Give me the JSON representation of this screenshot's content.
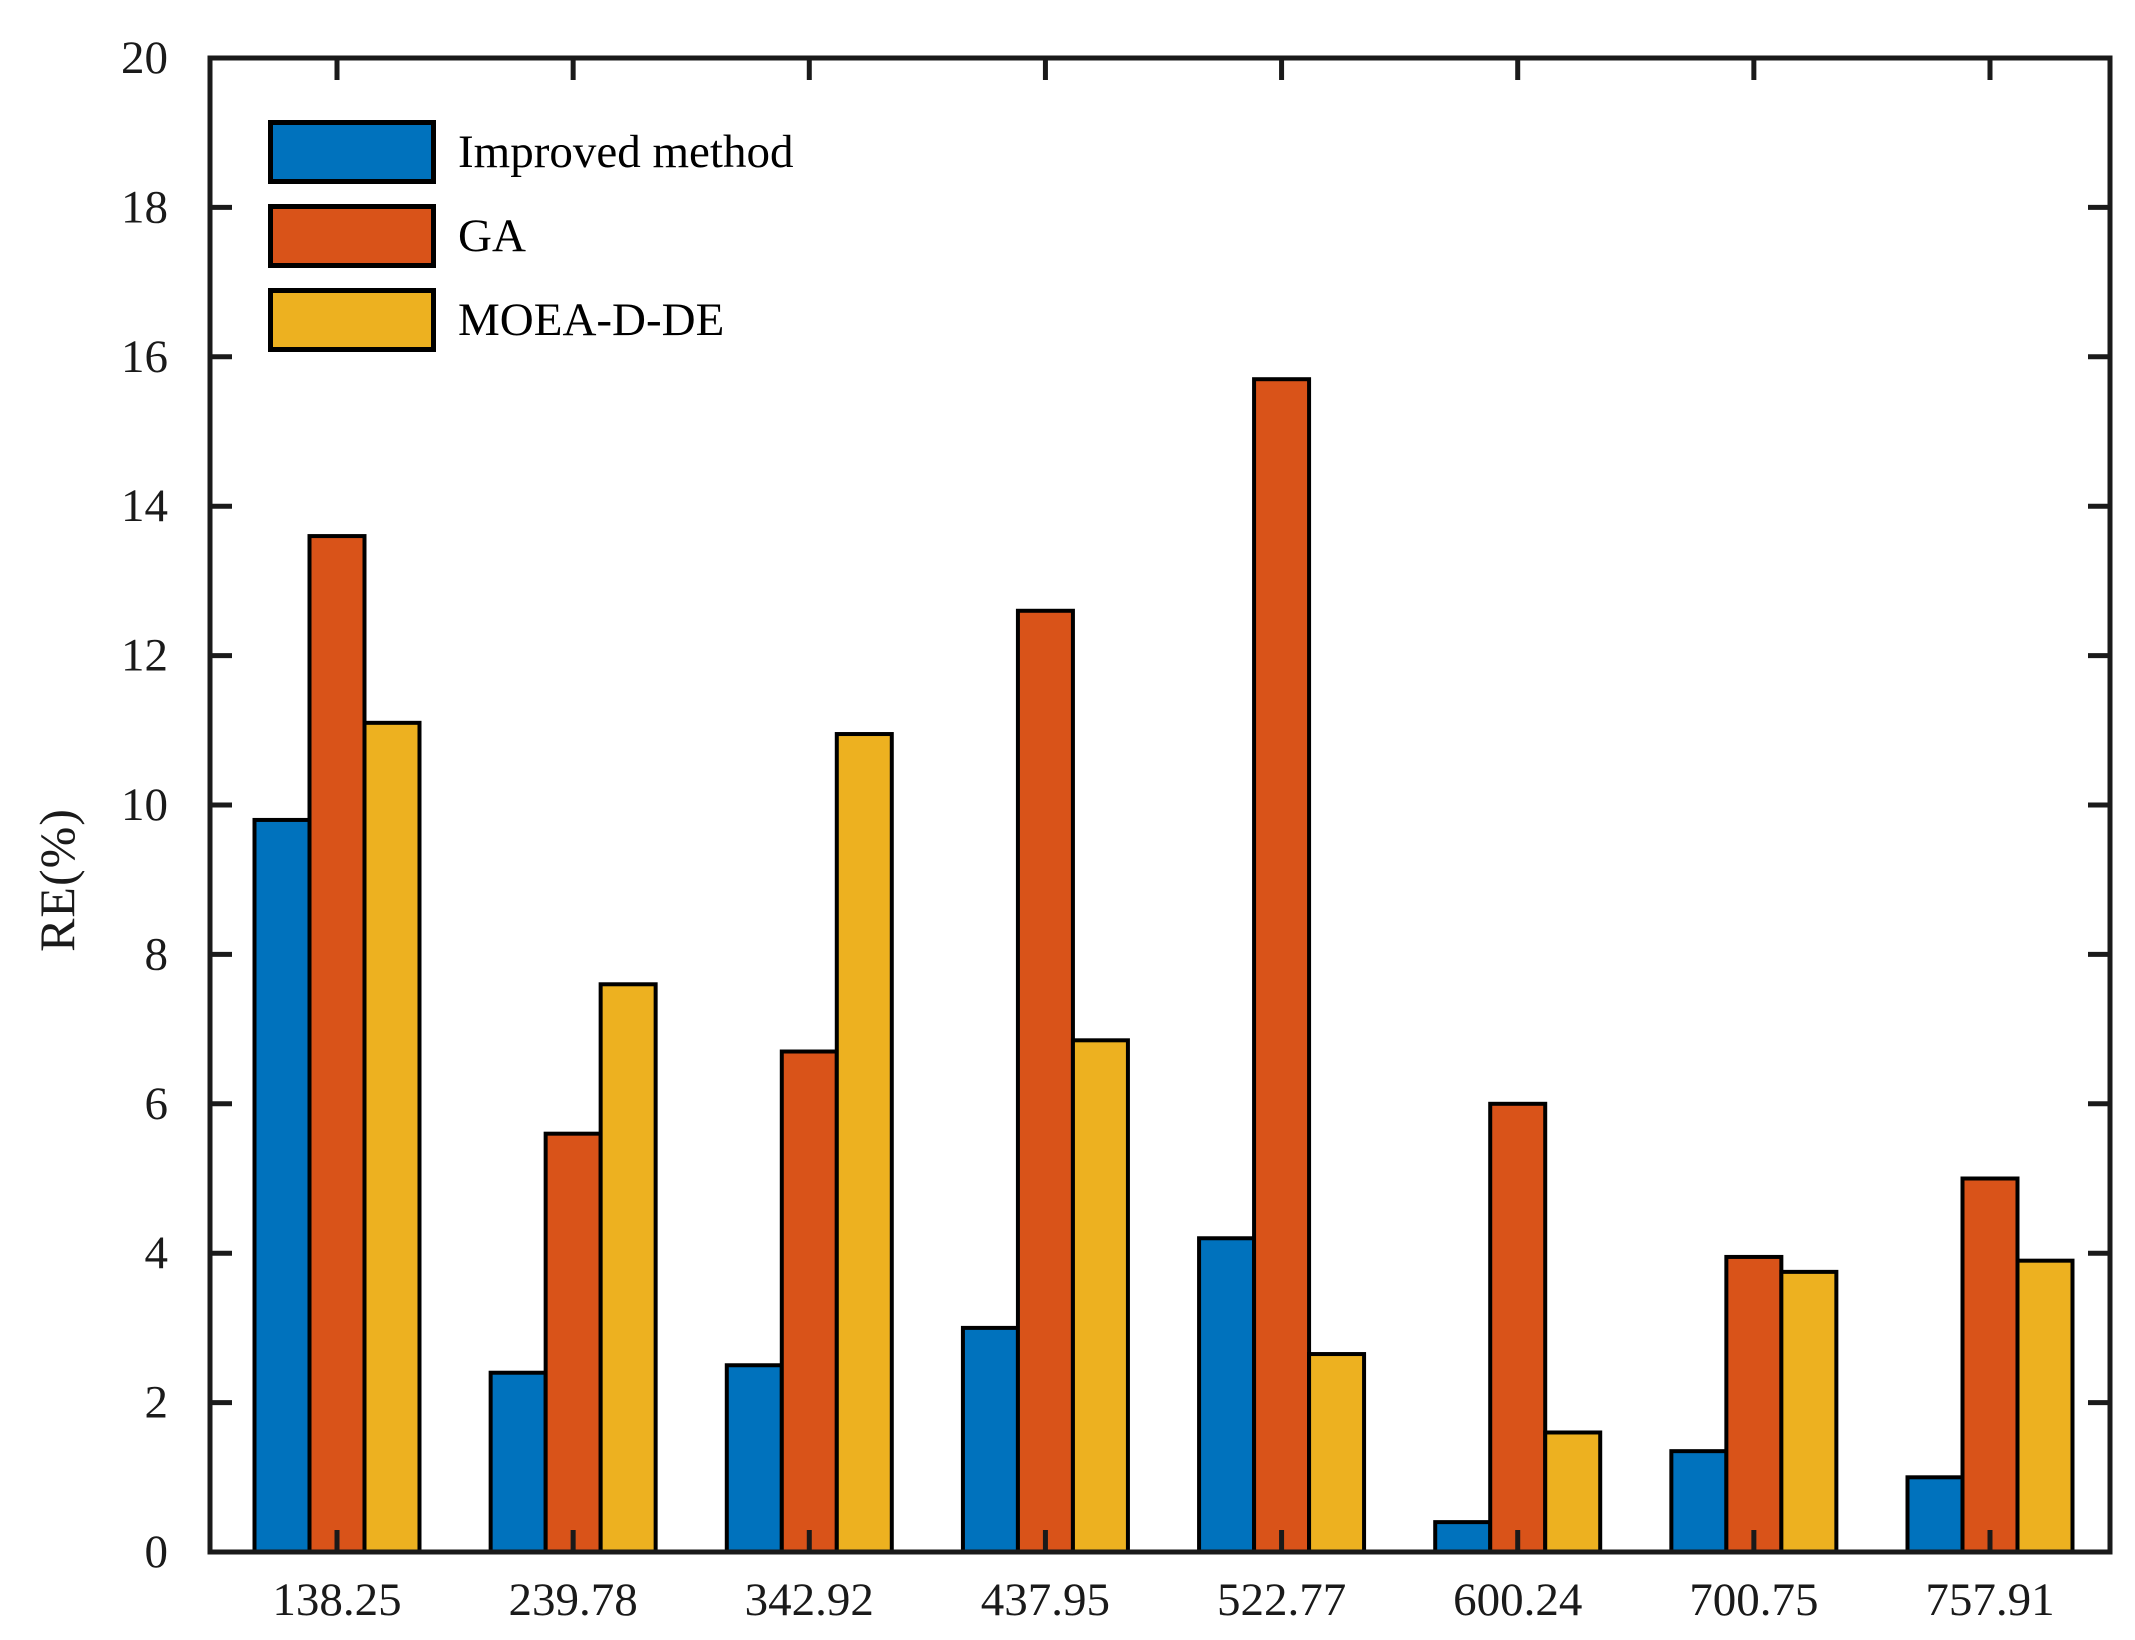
{
  "chart_data": {
    "type": "bar",
    "title": "",
    "xlabel": "",
    "ylabel": "RE(%)",
    "ylim": [
      0,
      20
    ],
    "ytick_step": 2,
    "grid": false,
    "legend_position": "top-left-inside",
    "categories": [
      "138.25",
      "239.78",
      "342.92",
      "437.95",
      "522.77",
      "600.24",
      "700.75",
      "757.91"
    ],
    "series": [
      {
        "name": "Improved method",
        "color": "#0072BD",
        "values": [
          9.8,
          2.4,
          2.5,
          3.0,
          4.2,
          0.4,
          1.35,
          1.0
        ]
      },
      {
        "name": "GA",
        "color": "#D95319",
        "values": [
          13.6,
          5.6,
          6.7,
          12.6,
          15.7,
          6.0,
          3.95,
          5.0
        ]
      },
      {
        "name": "MOEA-D-DE",
        "color": "#EDB120",
        "values": [
          11.1,
          7.6,
          10.95,
          6.85,
          2.65,
          1.6,
          3.75,
          3.9
        ]
      }
    ],
    "bar_edge_color": "#000000",
    "axis_color": "#1a1a1a"
  }
}
